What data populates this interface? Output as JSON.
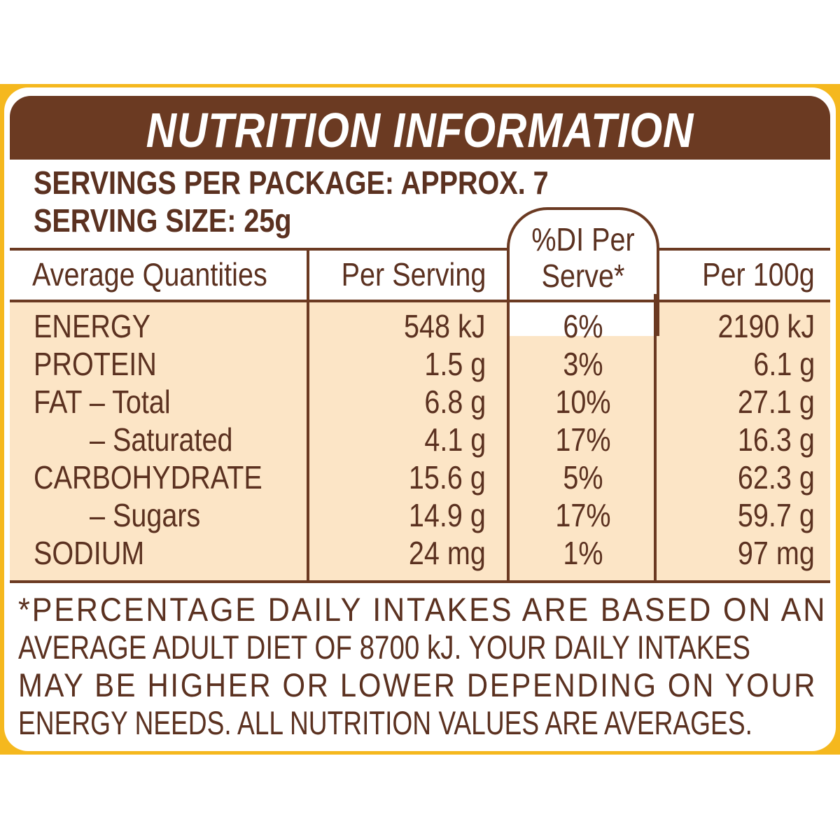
{
  "title": "NUTRITION INFORMATION",
  "servings_per_package": "SERVINGS PER PACKAGE: APPROX. 7",
  "serving_size": "SERVING SIZE: 25g",
  "columns": {
    "quantities": "Average Quantities",
    "per_serving": "Per Serving",
    "di_line1": "%DI Per",
    "di_line2": "Serve*",
    "per_100g": "Per 100g"
  },
  "rows": [
    {
      "label": "ENERGY",
      "per_serving": "548 kJ",
      "di": "6%",
      "per_100g": "2190 kJ"
    },
    {
      "label": "PROTEIN",
      "per_serving": "1.5 g",
      "di": "3%",
      "per_100g": "6.1 g"
    },
    {
      "label": "FAT – Total",
      "per_serving": "6.8 g",
      "di": "10%",
      "per_100g": "27.1 g"
    },
    {
      "label": "– Saturated",
      "per_serving": "4.1 g",
      "di": "17%",
      "per_100g": "16.3 g"
    },
    {
      "label": "CARBOHYDRATE",
      "per_serving": "15.6 g",
      "di": "5%",
      "per_100g": "62.3 g"
    },
    {
      "label": "– Sugars",
      "per_serving": "14.9 g",
      "di": "17%",
      "per_100g": "59.7 g"
    },
    {
      "label": "SODIUM",
      "per_serving": "24 mg",
      "di": "1%",
      "per_100g": "97 mg"
    }
  ],
  "footnote": [
    "*PERCENTAGE DAILY INTAKES ARE BASED ON AN",
    "AVERAGE ADULT DIET OF 8700 kJ. YOUR DAILY INTAKES",
    "MAY BE HIGHER OR LOWER DEPENDING ON YOUR",
    "ENERGY NEEDS. ALL NUTRITION VALUES ARE AVERAGES."
  ]
}
